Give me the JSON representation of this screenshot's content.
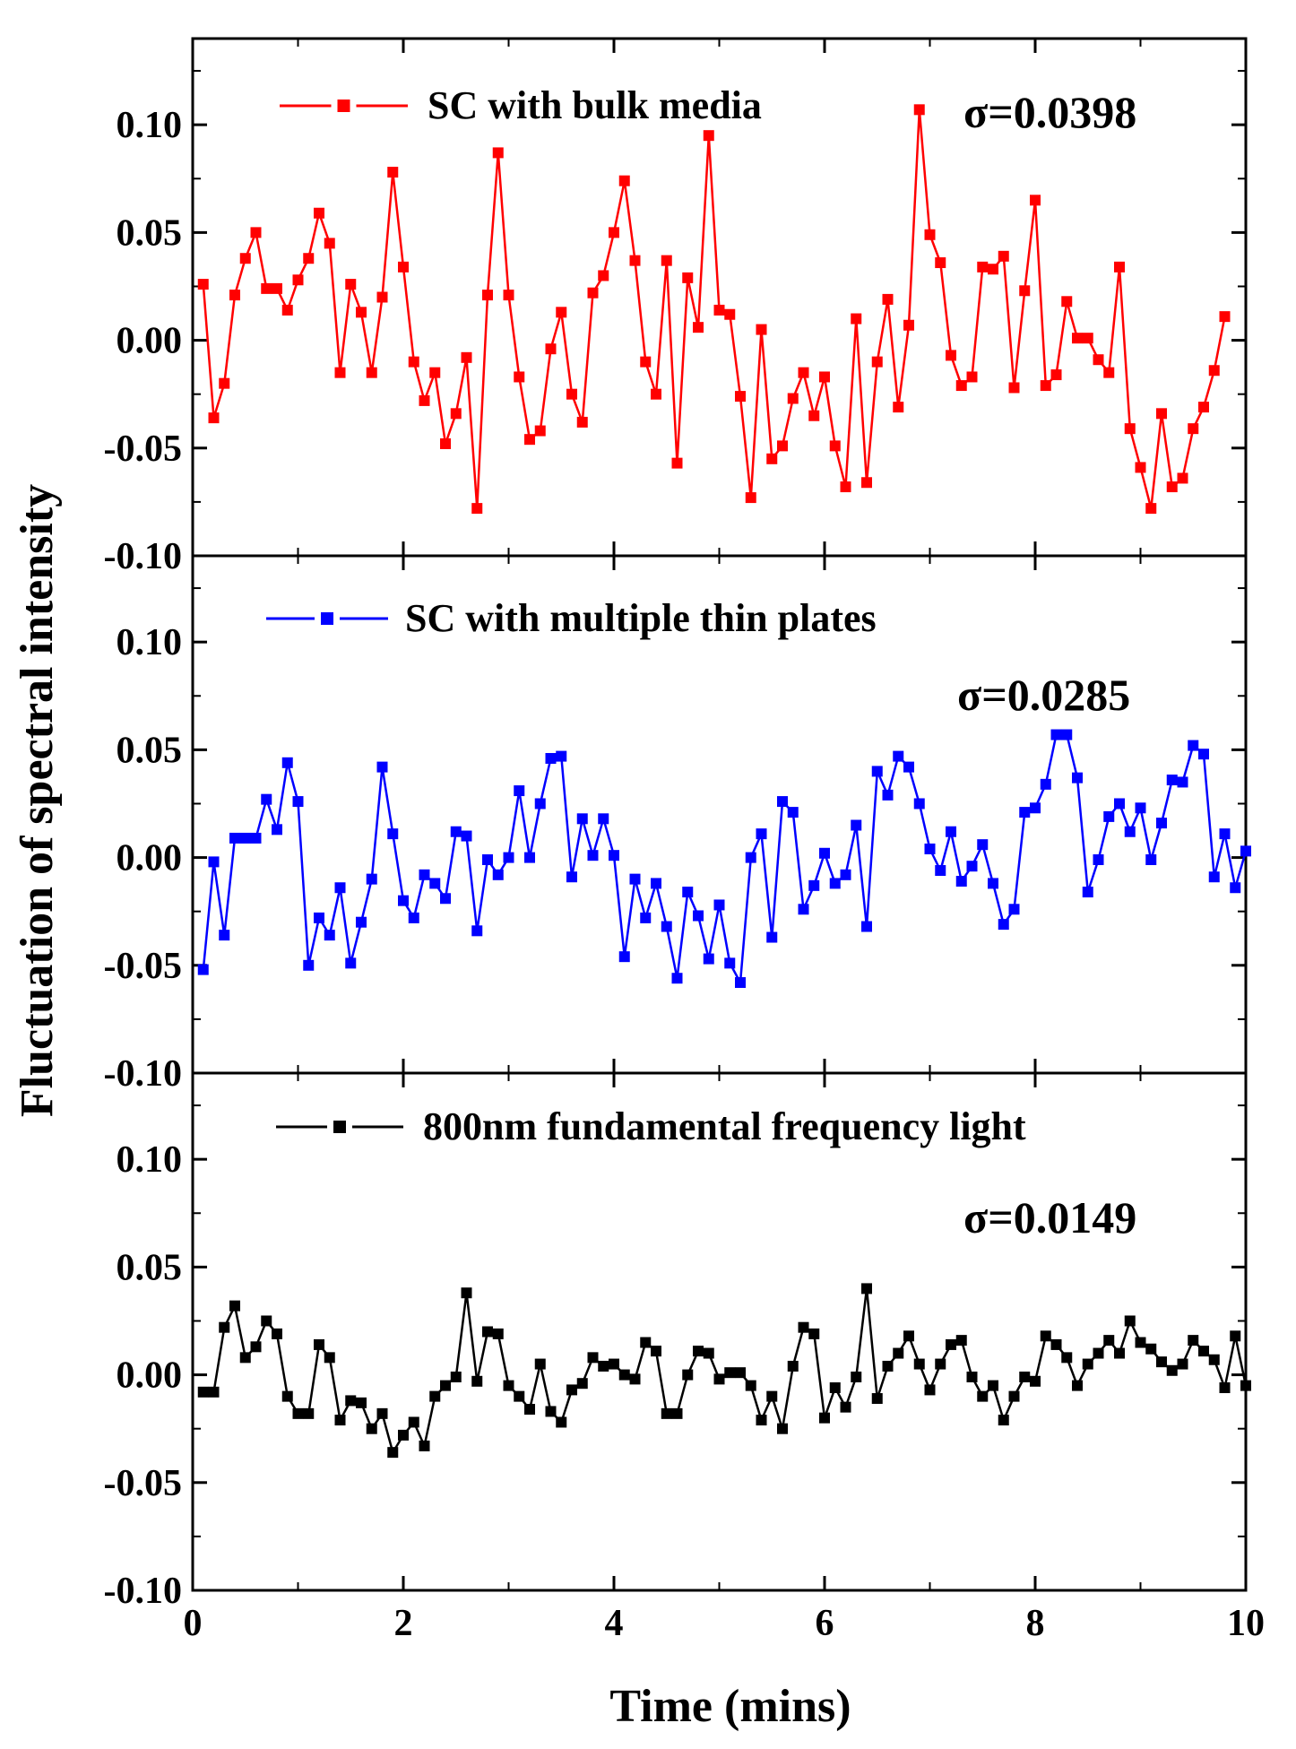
{
  "chart_data": {
    "type": "line",
    "xlabel": "Time (mins)",
    "ylabel": "Fluctuation of spectral intensity",
    "xlim": [
      0,
      10
    ],
    "ylim": [
      -0.1,
      0.14
    ],
    "x_ticks": [
      0,
      2,
      4,
      6,
      8,
      10
    ],
    "x_tick_labels": [
      "0",
      "2",
      "4",
      "6",
      "8",
      "10"
    ],
    "y_ticks": [
      -0.1,
      -0.05,
      0.0,
      0.05,
      0.1
    ],
    "y_tick_labels": [
      "-0.10",
      "-0.05",
      "0.00",
      "0.05",
      "0.10"
    ],
    "x_step": 0.1,
    "x_start": 0.1,
    "panels": [
      {
        "name": "SC with bulk media",
        "legend": "SC with bulk media",
        "sigma_label": "σ=0.0398",
        "color": "#ff0000",
        "values": [
          0.026,
          -0.036,
          -0.02,
          0.021,
          0.038,
          0.05,
          0.024,
          0.024,
          0.014,
          0.028,
          0.038,
          0.059,
          0.045,
          -0.015,
          0.026,
          0.013,
          -0.015,
          0.02,
          0.078,
          0.034,
          -0.01,
          -0.028,
          -0.015,
          -0.048,
          -0.034,
          -0.008,
          -0.078,
          0.021,
          0.087,
          0.021,
          -0.017,
          -0.046,
          -0.042,
          -0.004,
          0.013,
          -0.025,
          -0.038,
          0.022,
          0.03,
          0.05,
          0.074,
          0.037,
          -0.01,
          -0.025,
          0.037,
          -0.057,
          0.029,
          0.006,
          0.095,
          0.014,
          0.012,
          -0.026,
          -0.073,
          0.005,
          -0.055,
          -0.049,
          -0.027,
          -0.015,
          -0.035,
          -0.017,
          -0.049,
          -0.068,
          0.01,
          -0.066,
          -0.01,
          0.019,
          -0.031,
          0.007,
          0.107,
          0.049,
          0.036,
          -0.007,
          -0.021,
          -0.017,
          0.034,
          0.033,
          0.039,
          -0.022,
          0.023,
          0.065,
          -0.021,
          -0.016,
          0.018,
          0.001,
          0.001,
          -0.009,
          -0.015,
          0.034,
          -0.041,
          -0.059,
          -0.078,
          -0.034,
          -0.068,
          -0.064,
          -0.041,
          -0.031,
          -0.014,
          0.011
        ]
      },
      {
        "name": "SC with multiple thin plates",
        "legend": "SC with multiple thin plates",
        "sigma_label": "σ=0.0285",
        "color": "#0000ff",
        "values": [
          -0.052,
          -0.002,
          -0.036,
          0.009,
          0.009,
          0.009,
          0.027,
          0.013,
          0.044,
          0.026,
          -0.05,
          -0.028,
          -0.036,
          -0.014,
          -0.049,
          -0.03,
          -0.01,
          0.042,
          0.011,
          -0.02,
          -0.028,
          -0.008,
          -0.012,
          -0.019,
          0.012,
          0.01,
          -0.034,
          -0.001,
          -0.008,
          0.0,
          0.031,
          0.0,
          0.025,
          0.046,
          0.047,
          -0.009,
          0.018,
          0.001,
          0.018,
          0.001,
          -0.046,
          -0.01,
          -0.028,
          -0.012,
          -0.032,
          -0.056,
          -0.016,
          -0.027,
          -0.047,
          -0.022,
          -0.049,
          -0.058,
          0.0,
          0.011,
          -0.037,
          0.026,
          0.021,
          -0.024,
          -0.013,
          0.002,
          -0.012,
          -0.008,
          0.015,
          -0.032,
          0.04,
          0.029,
          0.047,
          0.042,
          0.025,
          0.004,
          -0.006,
          0.012,
          -0.011,
          -0.004,
          0.006,
          -0.012,
          -0.031,
          -0.024,
          0.021,
          0.023,
          0.034,
          0.057,
          0.057,
          0.037,
          -0.016,
          -0.001,
          0.019,
          0.025,
          0.012,
          0.023,
          -0.001,
          0.016,
          0.036,
          0.035,
          0.052,
          0.048,
          -0.009,
          0.011,
          -0.014,
          0.003
        ]
      },
      {
        "name": "800nm fundamental frequency light",
        "legend": "800nm fundamental frequency light",
        "sigma_label": "σ=0.0149",
        "color": "#000000",
        "values": [
          -0.008,
          -0.008,
          0.022,
          0.032,
          0.008,
          0.013,
          0.025,
          0.019,
          -0.01,
          -0.018,
          -0.018,
          0.014,
          0.008,
          -0.021,
          -0.012,
          -0.013,
          -0.025,
          -0.018,
          -0.036,
          -0.028,
          -0.022,
          -0.033,
          -0.01,
          -0.005,
          -0.001,
          0.038,
          -0.003,
          0.02,
          0.019,
          -0.005,
          -0.01,
          -0.016,
          0.005,
          -0.017,
          -0.022,
          -0.007,
          -0.004,
          0.008,
          0.004,
          0.005,
          0.0,
          -0.002,
          0.015,
          0.011,
          -0.018,
          -0.018,
          0.0,
          0.011,
          0.01,
          -0.002,
          0.001,
          0.001,
          -0.005,
          -0.021,
          -0.01,
          -0.025,
          0.004,
          0.022,
          0.019,
          -0.02,
          -0.006,
          -0.015,
          -0.001,
          0.04,
          -0.011,
          0.004,
          0.01,
          0.018,
          0.005,
          -0.007,
          0.005,
          0.014,
          0.016,
          -0.001,
          -0.01,
          -0.005,
          -0.021,
          -0.01,
          -0.001,
          -0.003,
          0.018,
          0.014,
          0.008,
          -0.005,
          0.005,
          0.01,
          0.016,
          0.01,
          0.025,
          0.015,
          0.012,
          0.006,
          0.002,
          0.005,
          0.016,
          0.011,
          0.007,
          -0.006,
          0.018,
          -0.005
        ]
      }
    ]
  }
}
